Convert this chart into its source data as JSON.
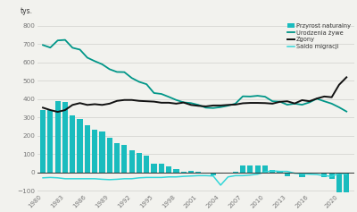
{
  "years": [
    1980,
    1981,
    1982,
    1983,
    1984,
    1985,
    1986,
    1987,
    1988,
    1989,
    1990,
    1991,
    1992,
    1993,
    1994,
    1995,
    1996,
    1997,
    1998,
    1999,
    2000,
    2001,
    2002,
    2003,
    2004,
    2005,
    2006,
    2007,
    2008,
    2009,
    2010,
    2011,
    2012,
    2013,
    2014,
    2015,
    2016,
    2017,
    2018,
    2019,
    2020,
    2021
  ],
  "urodzenia": [
    695,
    681,
    720,
    723,
    680,
    670,
    626,
    607,
    590,
    563,
    548,
    547,
    515,
    494,
    481,
    433,
    428,
    412,
    395,
    382,
    378,
    368,
    353,
    351,
    356,
    364,
    375,
    415,
    414,
    418,
    413,
    388,
    386,
    369,
    375,
    369,
    382,
    402,
    388,
    375,
    355,
    332
  ],
  "zgony": [
    353,
    340,
    330,
    340,
    368,
    378,
    368,
    372,
    368,
    375,
    390,
    395,
    395,
    390,
    388,
    386,
    380,
    380,
    375,
    381,
    368,
    363,
    360,
    365,
    365,
    368,
    370,
    377,
    379,
    379,
    378,
    375,
    385,
    388,
    376,
    394,
    388,
    403,
    414,
    410,
    478,
    519
  ],
  "przyrost": [
    342,
    341,
    390,
    383,
    312,
    292,
    258,
    235,
    222,
    188,
    158,
    152,
    120,
    104,
    93,
    47,
    48,
    32,
    20,
    1,
    10,
    5,
    -7,
    -14,
    -9,
    -4,
    5,
    38,
    35,
    39,
    35,
    13,
    1,
    -19,
    -1,
    -25,
    -6,
    -1,
    -26,
    -35,
    -123,
    -188
  ],
  "saldo": [
    -30,
    -28,
    -30,
    -35,
    -35,
    -35,
    -35,
    -35,
    -38,
    -40,
    -38,
    -35,
    -35,
    -30,
    -28,
    -28,
    -28,
    -25,
    -25,
    -22,
    -20,
    -18,
    -18,
    -20,
    -70,
    -25,
    -18,
    -18,
    -15,
    -10,
    2,
    8,
    5,
    5,
    -5,
    -8,
    -10,
    -12,
    -18,
    -22,
    -5,
    -10
  ],
  "bar_color": "#1abcbe",
  "urodzenia_color": "#009688",
  "zgony_color": "#111111",
  "saldo_color": "#33d6d8",
  "bg_color": "#f2f2ee",
  "grid_color": "#d0d0cc",
  "tick_color": "#777777",
  "yticks": [
    -100,
    0,
    100,
    200,
    300,
    400,
    500,
    600,
    700,
    800
  ],
  "xticks": [
    1980,
    1983,
    1986,
    1989,
    1992,
    1995,
    1998,
    2001,
    2004,
    2007,
    2010,
    2013,
    2016,
    2020
  ],
  "ylim": [
    -110,
    830
  ],
  "xlim": [
    1979.3,
    2022
  ],
  "legend_labels": [
    "Przyrost naturalny",
    "Urodzenia żywe",
    "Zgony",
    "Saldo migracji"
  ],
  "ylabel": "tys."
}
